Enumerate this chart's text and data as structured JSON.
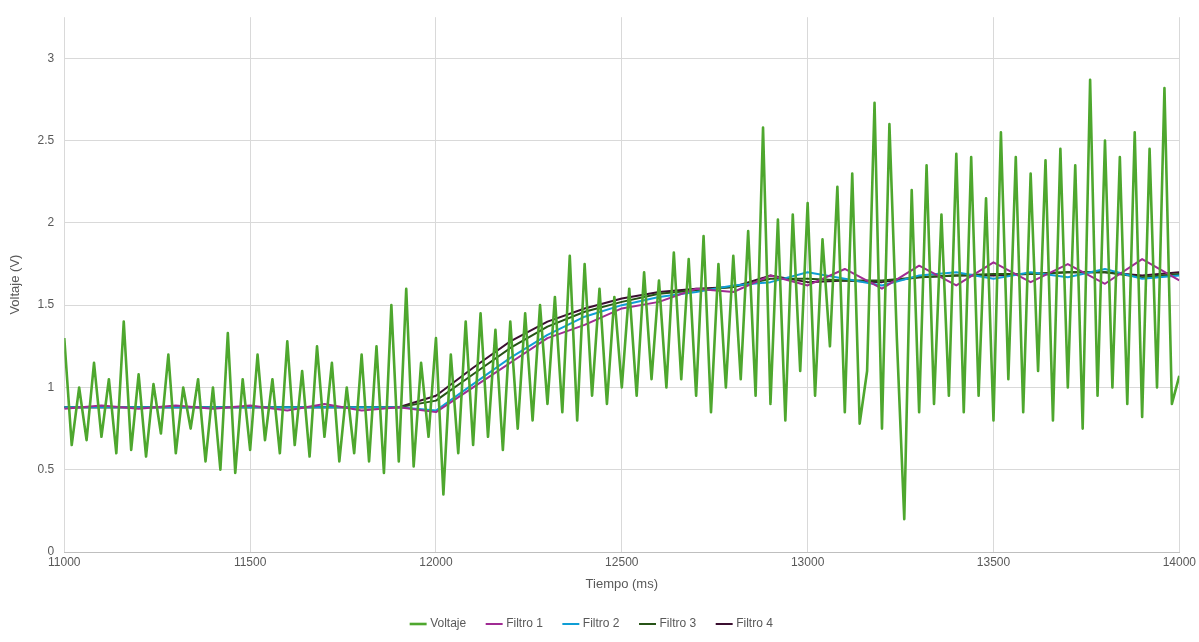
{
  "chart_data": {
    "type": "line",
    "xlabel": "Tiempo (ms)",
    "ylabel": "Voltaje (V)",
    "xlim": [
      11000,
      14000
    ],
    "xticks": [
      11000,
      11500,
      12000,
      12500,
      13000,
      13500,
      14000
    ],
    "ylim": [
      0,
      3.25
    ],
    "yticks": [
      0,
      0.5,
      1,
      1.5,
      2,
      2.5,
      3
    ],
    "grid": true,
    "legend": "bottom",
    "marker": "none",
    "line_style": "solid",
    "series": [
      {
        "name": "Voltaje",
        "color": "#4ea72e",
        "x": [
          11000,
          11020,
          11040,
          11060,
          11080,
          11100,
          11120,
          11140,
          11160,
          11180,
          11200,
          11220,
          11240,
          11260,
          11280,
          11300,
          11320,
          11340,
          11360,
          11380,
          11400,
          11420,
          11440,
          11460,
          11480,
          11500,
          11520,
          11540,
          11560,
          11580,
          11600,
          11620,
          11640,
          11660,
          11680,
          11700,
          11720,
          11740,
          11760,
          11780,
          11800,
          11820,
          11840,
          11860,
          11880,
          11900,
          11920,
          11940,
          11960,
          11980,
          12000,
          12020,
          12040,
          12060,
          12080,
          12100,
          12120,
          12140,
          12160,
          12180,
          12200,
          12220,
          12240,
          12260,
          12280,
          12300,
          12320,
          12340,
          12360,
          12380,
          12400,
          12420,
          12440,
          12460,
          12480,
          12500,
          12520,
          12540,
          12560,
          12580,
          12600,
          12620,
          12640,
          12660,
          12680,
          12700,
          12720,
          12740,
          12760,
          12780,
          12800,
          12820,
          12840,
          12860,
          12880,
          12900,
          12920,
          12940,
          12960,
          12980,
          13000,
          13020,
          13040,
          13060,
          13080,
          13100,
          13120,
          13140,
          13160,
          13180,
          13200,
          13220,
          13240,
          13260,
          13280,
          13300,
          13320,
          13340,
          13360,
          13380,
          13400,
          13420,
          13440,
          13460,
          13480,
          13500,
          13520,
          13540,
          13560,
          13580,
          13600,
          13620,
          13640,
          13660,
          13680,
          13700,
          13720,
          13740,
          13760,
          13780,
          13800,
          13820,
          13840,
          13860,
          13880,
          13900,
          13920,
          13940,
          13960,
          13980,
          14000
        ],
        "values": [
          1.3,
          0.65,
          1.0,
          0.68,
          1.15,
          0.7,
          1.05,
          0.6,
          1.4,
          0.62,
          1.08,
          0.58,
          1.02,
          0.72,
          1.2,
          0.6,
          1.0,
          0.75,
          1.05,
          0.55,
          1.0,
          0.5,
          1.33,
          0.48,
          1.05,
          0.62,
          1.2,
          0.68,
          1.05,
          0.6,
          1.28,
          0.65,
          1.1,
          0.58,
          1.25,
          0.7,
          1.15,
          0.55,
          1.0,
          0.6,
          1.2,
          0.55,
          1.25,
          0.48,
          1.5,
          0.55,
          1.6,
          0.52,
          1.15,
          0.7,
          1.3,
          0.35,
          1.2,
          0.6,
          1.4,
          0.65,
          1.45,
          0.7,
          1.35,
          0.62,
          1.4,
          0.75,
          1.45,
          0.8,
          1.5,
          0.9,
          1.55,
          0.85,
          1.8,
          0.8,
          1.75,
          0.95,
          1.6,
          0.9,
          1.55,
          1.0,
          1.6,
          0.95,
          1.7,
          1.05,
          1.65,
          1.0,
          1.82,
          1.05,
          1.78,
          0.95,
          1.92,
          0.85,
          1.75,
          1.0,
          1.8,
          1.05,
          1.95,
          0.95,
          2.58,
          0.9,
          2.02,
          0.8,
          2.05,
          1.1,
          2.12,
          0.95,
          1.9,
          1.25,
          2.22,
          0.85,
          2.3,
          0.78,
          1.1,
          2.73,
          0.75,
          2.6,
          1.3,
          0.2,
          2.2,
          0.85,
          2.35,
          0.9,
          2.05,
          0.95,
          2.42,
          0.85,
          2.4,
          0.95,
          2.15,
          0.8,
          2.55,
          1.05,
          2.4,
          0.85,
          2.3,
          1.1,
          2.38,
          0.8,
          2.45,
          1.0,
          2.35,
          0.75,
          2.87,
          0.95,
          2.5,
          1.0,
          2.4,
          0.9,
          2.55,
          0.82,
          2.45,
          1.0,
          2.82,
          0.9,
          1.07
        ]
      },
      {
        "name": "Filtro 1",
        "color": "#a02b93",
        "x": [
          11000,
          11100,
          11200,
          11300,
          11400,
          11500,
          11600,
          11700,
          11800,
          11900,
          12000,
          12100,
          12200,
          12300,
          12400,
          12500,
          12600,
          12700,
          12800,
          12900,
          13000,
          13100,
          13200,
          13300,
          13400,
          13500,
          13600,
          13700,
          13800,
          13900,
          14000
        ],
        "values": [
          0.87,
          0.89,
          0.87,
          0.89,
          0.87,
          0.89,
          0.86,
          0.9,
          0.86,
          0.88,
          0.85,
          1.0,
          1.15,
          1.3,
          1.38,
          1.48,
          1.52,
          1.6,
          1.58,
          1.68,
          1.62,
          1.72,
          1.6,
          1.74,
          1.62,
          1.76,
          1.64,
          1.75,
          1.63,
          1.78,
          1.65
        ]
      },
      {
        "name": "Filtro 2",
        "color": "#0f9ed5",
        "x": [
          11000,
          11100,
          11200,
          11300,
          11400,
          11500,
          11600,
          11700,
          11800,
          11900,
          12000,
          12100,
          12200,
          12300,
          12400,
          12500,
          12600,
          12700,
          12800,
          12900,
          13000,
          13100,
          13200,
          13300,
          13400,
          13500,
          13600,
          13700,
          13800,
          13900,
          14000
        ],
        "values": [
          0.88,
          0.88,
          0.88,
          0.88,
          0.88,
          0.88,
          0.88,
          0.88,
          0.88,
          0.88,
          0.86,
          1.02,
          1.18,
          1.32,
          1.43,
          1.5,
          1.55,
          1.58,
          1.62,
          1.64,
          1.7,
          1.66,
          1.62,
          1.68,
          1.7,
          1.66,
          1.7,
          1.67,
          1.72,
          1.66,
          1.68
        ]
      },
      {
        "name": "Filtro 3",
        "color": "#275317",
        "x": [
          11000,
          11100,
          11200,
          11300,
          11400,
          11500,
          11600,
          11700,
          11800,
          11900,
          12000,
          12100,
          12200,
          12300,
          12400,
          12500,
          12600,
          12700,
          12800,
          12900,
          13000,
          13100,
          13200,
          13300,
          13400,
          13500,
          13600,
          13700,
          13800,
          13900,
          14000
        ],
        "values": [
          0.88,
          0.88,
          0.88,
          0.88,
          0.88,
          0.88,
          0.88,
          0.88,
          0.88,
          0.88,
          0.92,
          1.08,
          1.24,
          1.37,
          1.46,
          1.52,
          1.57,
          1.59,
          1.61,
          1.66,
          1.66,
          1.65,
          1.65,
          1.67,
          1.68,
          1.69,
          1.69,
          1.7,
          1.7,
          1.67,
          1.69
        ]
      },
      {
        "name": "Filtro 4",
        "color": "#3b0f30",
        "x": [
          11000,
          11100,
          11200,
          11300,
          11400,
          11500,
          11600,
          11700,
          11800,
          11900,
          12000,
          12100,
          12200,
          12300,
          12400,
          12500,
          12600,
          12700,
          12800,
          12900,
          13000,
          13100,
          13200,
          13300,
          13400,
          13500,
          13600,
          13700,
          13800,
          13900,
          14000
        ],
        "values": [
          0.88,
          0.88,
          0.88,
          0.88,
          0.88,
          0.88,
          0.88,
          0.88,
          0.88,
          0.88,
          0.95,
          1.12,
          1.28,
          1.4,
          1.48,
          1.54,
          1.58,
          1.6,
          1.61,
          1.68,
          1.64,
          1.65,
          1.64,
          1.67,
          1.68,
          1.68,
          1.69,
          1.7,
          1.7,
          1.68,
          1.7
        ]
      }
    ]
  }
}
